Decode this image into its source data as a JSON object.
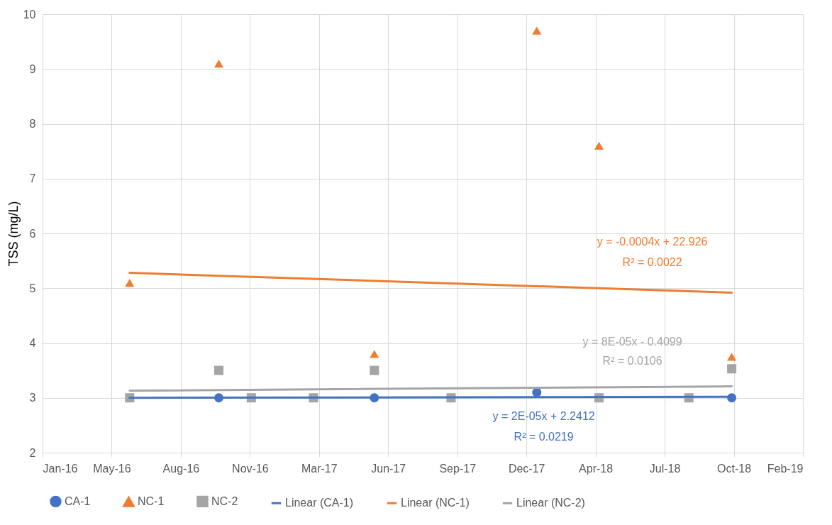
{
  "chart_data": {
    "type": "scatter",
    "ylabel": "TSS (mg/L)",
    "xlim": [
      "2016-01-31",
      "2019-02-04"
    ],
    "xticks": [
      {
        "value": "2016-01-31",
        "label": "Jan-16"
      },
      {
        "value": "2016-05-10",
        "label": "May-16"
      },
      {
        "value": "2016-08-18",
        "label": "Aug-16"
      },
      {
        "value": "2016-11-26",
        "label": "Nov-16"
      },
      {
        "value": "2017-03-06",
        "label": "Mar-17"
      },
      {
        "value": "2017-06-14",
        "label": "Jun-17"
      },
      {
        "value": "2017-09-22",
        "label": "Sep-17"
      },
      {
        "value": "2017-12-31",
        "label": "Dec-17"
      },
      {
        "value": "2018-04-10",
        "label": "Apr-18"
      },
      {
        "value": "2018-07-19",
        "label": "Jul-18"
      },
      {
        "value": "2018-10-27",
        "label": "Oct-18"
      },
      {
        "value": "2019-02-04",
        "label": "Feb-19"
      }
    ],
    "ylim": [
      2,
      10
    ],
    "yticks": [
      2,
      3,
      4,
      5,
      6,
      7,
      8,
      9,
      10
    ],
    "grid": true,
    "legend": "bottom",
    "series": [
      {
        "name": "CA-1",
        "marker": "circle",
        "color": "#4472c4",
        "x": [
          "2016-10-12",
          "2017-05-25",
          "2018-01-15",
          "2018-10-24"
        ],
        "values": [
          3.0,
          3.0,
          3.1,
          3.0
        ]
      },
      {
        "name": "NC-1",
        "marker": "triangle",
        "color": "#ed7d31",
        "x": [
          "2016-06-05",
          "2016-10-12",
          "2017-05-25",
          "2018-01-15",
          "2018-04-15",
          "2018-10-24"
        ],
        "values": [
          5.1,
          9.1,
          3.8,
          9.7,
          7.6,
          3.75
        ]
      },
      {
        "name": "NC-2",
        "marker": "square",
        "color": "#a5a5a5",
        "x": [
          "2016-06-05",
          "2016-10-12",
          "2016-11-28",
          "2017-02-26",
          "2017-05-25",
          "2017-09-13",
          "2018-04-15",
          "2018-08-23",
          "2018-10-24"
        ],
        "values": [
          3.0,
          3.5,
          3.0,
          3.0,
          3.5,
          3.0,
          3.0,
          3.0,
          3.53
        ]
      },
      {
        "name": "Linear (CA-1)",
        "type": "line",
        "color": "#4472c4",
        "x": [
          "2016-06-05",
          "2018-10-24"
        ],
        "values": [
          3.0,
          3.02
        ]
      },
      {
        "name": "Linear (NC-1)",
        "type": "line",
        "color": "#ed7d31",
        "x": [
          "2016-06-05",
          "2018-10-24"
        ],
        "values": [
          5.28,
          4.92
        ]
      },
      {
        "name": "Linear (NC-2)",
        "type": "line",
        "color": "#a5a5a5",
        "x": [
          "2016-06-05",
          "2018-10-24"
        ],
        "values": [
          3.13,
          3.21
        ]
      }
    ],
    "annotations": [
      "y = 2E-05x + 2.2412",
      "R² = 0.0219",
      "y = -0.0004x + 22.926",
      "R² = 0.0022",
      "y = 8E-05x - 0.4099",
      "R² = 0.0106"
    ]
  }
}
